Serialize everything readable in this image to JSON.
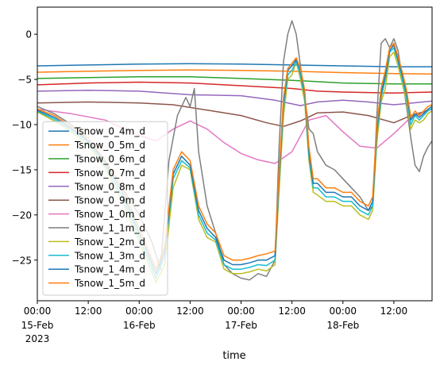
{
  "chart_data": {
    "type": "line",
    "xlabel": "time",
    "ylabel": "",
    "x_unit": "hours since 2023-02-15 00:00",
    "xlim": [
      0,
      93
    ],
    "ylim": [
      -29.5,
      3.0
    ],
    "grid": false,
    "legend_position": "lower-left",
    "y_ticks": [
      0,
      -5,
      -10,
      -15,
      -20,
      -25
    ],
    "y_tick_labels": [
      "0",
      "−5",
      "−10",
      "−15",
      "−20",
      "−25"
    ],
    "x_ticks": [
      {
        "hour": 0,
        "label": "00:00",
        "date": "15-Feb",
        "year": "2023"
      },
      {
        "hour": 12,
        "label": "12:00",
        "date": "",
        "year": ""
      },
      {
        "hour": 24,
        "label": "00:00",
        "date": "16-Feb",
        "year": ""
      },
      {
        "hour": 36,
        "label": "12:00",
        "date": "",
        "year": ""
      },
      {
        "hour": 48,
        "label": "00:00",
        "date": "17-Feb",
        "year": ""
      },
      {
        "hour": 60,
        "label": "12:00",
        "date": "",
        "year": ""
      },
      {
        "hour": 72,
        "label": "00:00",
        "date": "18-Feb",
        "year": ""
      },
      {
        "hour": 84,
        "label": "12:00",
        "date": "",
        "year": ""
      }
    ],
    "series": [
      {
        "name": "Tsnow_0_4m_d",
        "color": "#1f77b4",
        "x": [
          0,
          12,
          24,
          36,
          48,
          60,
          72,
          84,
          93
        ],
        "y": [
          -3.5,
          -3.4,
          -3.3,
          -3.25,
          -3.3,
          -3.4,
          -3.5,
          -3.6,
          -3.6
        ]
      },
      {
        "name": "Tsnow_0_5m_d",
        "color": "#ff7f0e",
        "x": [
          0,
          12,
          24,
          36,
          48,
          60,
          72,
          84,
          93
        ],
        "y": [
          -4.2,
          -4.1,
          -4.0,
          -3.95,
          -4.0,
          -4.1,
          -4.25,
          -4.35,
          -4.4
        ]
      },
      {
        "name": "Tsnow_0_6m_d",
        "color": "#2ca02c",
        "x": [
          0,
          12,
          24,
          36,
          48,
          60,
          72,
          84,
          93
        ],
        "y": [
          -4.9,
          -4.8,
          -4.7,
          -4.7,
          -4.9,
          -5.1,
          -5.4,
          -5.5,
          -5.5
        ]
      },
      {
        "name": "Tsnow_0_7m_d",
        "color": "#d62728",
        "x": [
          0,
          12,
          24,
          36,
          48,
          60,
          66,
          72,
          84,
          93
        ],
        "y": [
          -5.6,
          -5.4,
          -5.3,
          -5.4,
          -5.7,
          -6.0,
          -6.3,
          -6.4,
          -6.5,
          -6.4
        ]
      },
      {
        "name": "Tsnow_0_8m_d",
        "color": "#9467bd",
        "x": [
          0,
          12,
          24,
          36,
          48,
          56,
          62,
          66,
          72,
          78,
          84,
          93
        ],
        "y": [
          -6.3,
          -6.2,
          -6.3,
          -6.7,
          -6.8,
          -7.3,
          -7.9,
          -7.5,
          -7.3,
          -7.5,
          -7.8,
          -7.4
        ]
      },
      {
        "name": "Tsnow_0_9m_d",
        "color": "#8c564b",
        "x": [
          0,
          12,
          24,
          32,
          40,
          48,
          54,
          58,
          62,
          66,
          72,
          78,
          84,
          88,
          93
        ],
        "y": [
          -7.6,
          -7.5,
          -7.6,
          -7.8,
          -8.4,
          -9.0,
          -9.8,
          -10.2,
          -9.6,
          -8.7,
          -8.6,
          -9.0,
          -9.8,
          -9.0,
          -8.3
        ]
      },
      {
        "name": "Tsnow_1_0m_d",
        "color": "#e377c2",
        "x": [
          0,
          8,
          16,
          24,
          28,
          32,
          36,
          40,
          44,
          48,
          52,
          56,
          60,
          64,
          68,
          72,
          76,
          80,
          84,
          88,
          93
        ],
        "y": [
          -8.3,
          -8.8,
          -9.5,
          -11.2,
          -11.8,
          -10.5,
          -9.6,
          -10.5,
          -12.0,
          -13.2,
          -13.9,
          -14.3,
          -13.0,
          -9.5,
          -9.0,
          -10.8,
          -12.4,
          -12.6,
          -11.0,
          -9.2,
          -8.3
        ]
      },
      {
        "name": "Tsnow_1_1m_d",
        "color": "#7f7f7f",
        "x": [
          0,
          4,
          8,
          12,
          16,
          20,
          24,
          27,
          29,
          31,
          33,
          35,
          36,
          37,
          38,
          40,
          42,
          44,
          46,
          48,
          50,
          52,
          54,
          56,
          57,
          58,
          59,
          60,
          61,
          62,
          63,
          64,
          65,
          66,
          68,
          70,
          72,
          74,
          76,
          78,
          79,
          80,
          81,
          82,
          83,
          84,
          85,
          86,
          87,
          88,
          89,
          90,
          91,
          92,
          93
        ],
        "y": [
          -8.0,
          -8.8,
          -10.0,
          -11.8,
          -14.0,
          -17.0,
          -20.0,
          -23.0,
          -26.0,
          -14.0,
          -9.0,
          -7.0,
          -8.0,
          -6.0,
          -13.0,
          -19.0,
          -22.0,
          -25.5,
          -26.5,
          -27.0,
          -27.2,
          -26.5,
          -26.8,
          -25.0,
          -12.0,
          -3.0,
          0.0,
          1.5,
          0.0,
          -3.5,
          -7.0,
          -10.5,
          -11.0,
          -13.0,
          -14.5,
          -15.0,
          -16.0,
          -17.0,
          -18.0,
          -19.5,
          -19.0,
          -9.0,
          -1.0,
          -0.5,
          -1.5,
          -0.5,
          -1.8,
          -5.0,
          -8.0,
          -11.5,
          -14.5,
          -15.2,
          -13.5,
          -12.5,
          -11.8
        ]
      },
      {
        "name": "Tsnow_1_2m_d",
        "color": "#bcbd22",
        "x": [
          0,
          4,
          8,
          12,
          16,
          20,
          24,
          28,
          30,
          32,
          34,
          36,
          38,
          40,
          42,
          44,
          46,
          48,
          50,
          52,
          54,
          56,
          57,
          58,
          59,
          60,
          61,
          62,
          63,
          64,
          65,
          66,
          68,
          70,
          72,
          74,
          76,
          78,
          79,
          80,
          81,
          82,
          83,
          84,
          85,
          86,
          87,
          88,
          89,
          90,
          91,
          92,
          93
        ],
        "y": [
          -8.6,
          -9.6,
          -10.8,
          -12.3,
          -14.8,
          -18.5,
          -23.0,
          -27.5,
          -25.5,
          -17.0,
          -14.5,
          -15.0,
          -20.5,
          -22.5,
          -23.0,
          -26.0,
          -26.5,
          -26.5,
          -26.3,
          -26.0,
          -26.2,
          -25.5,
          -17.0,
          -9.0,
          -5.0,
          -4.5,
          -3.0,
          -5.0,
          -7.5,
          -14.0,
          -17.5,
          -17.8,
          -18.5,
          -18.5,
          -19.0,
          -19.0,
          -20.0,
          -20.5,
          -19.5,
          -12.0,
          -7.5,
          -6.0,
          -2.5,
          -2.0,
          -3.5,
          -5.5,
          -7.5,
          -10.5,
          -9.5,
          -9.8,
          -9.5,
          -8.8,
          -8.5
        ]
      },
      {
        "name": "Tsnow_1_3m_d",
        "color": "#17becf",
        "x": [
          0,
          4,
          8,
          12,
          16,
          20,
          24,
          28,
          30,
          32,
          34,
          36,
          38,
          40,
          42,
          44,
          46,
          48,
          50,
          52,
          54,
          56,
          57,
          58,
          59,
          60,
          61,
          62,
          63,
          64,
          65,
          66,
          68,
          70,
          72,
          74,
          76,
          78,
          79,
          80,
          81,
          82,
          83,
          84,
          85,
          86,
          87,
          88,
          89,
          90,
          91,
          92,
          93
        ],
        "y": [
          -8.5,
          -9.4,
          -10.6,
          -12.0,
          -14.5,
          -18.0,
          -22.5,
          -27.0,
          -24.5,
          -16.0,
          -14.0,
          -14.8,
          -20.0,
          -22.0,
          -22.8,
          -25.5,
          -26.0,
          -26.0,
          -25.8,
          -25.5,
          -25.6,
          -25.0,
          -16.0,
          -8.0,
          -4.5,
          -4.0,
          -3.0,
          -4.5,
          -7.0,
          -13.5,
          -17.0,
          -17.0,
          -18.0,
          -18.0,
          -18.5,
          -18.5,
          -19.5,
          -20.0,
          -19.0,
          -11.0,
          -7.0,
          -5.0,
          -2.0,
          -1.5,
          -3.0,
          -5.0,
          -7.0,
          -10.0,
          -9.0,
          -9.5,
          -9.0,
          -8.5,
          -8.2
        ]
      },
      {
        "name": "Tsnow_1_4m_d",
        "color": "#1f77b4",
        "x": [
          0,
          4,
          8,
          12,
          16,
          20,
          24,
          28,
          30,
          32,
          34,
          36,
          38,
          40,
          42,
          44,
          46,
          48,
          50,
          52,
          54,
          56,
          57,
          58,
          59,
          60,
          61,
          62,
          63,
          64,
          65,
          66,
          68,
          70,
          72,
          74,
          76,
          78,
          79,
          80,
          81,
          82,
          83,
          84,
          85,
          86,
          87,
          88,
          89,
          90,
          91,
          92,
          93
        ],
        "y": [
          -8.4,
          -9.2,
          -10.4,
          -11.8,
          -14.2,
          -17.5,
          -22.0,
          -26.5,
          -24.0,
          -15.5,
          -13.5,
          -14.5,
          -19.5,
          -21.5,
          -22.5,
          -25.0,
          -25.5,
          -25.5,
          -25.3,
          -25.0,
          -25.0,
          -24.5,
          -15.5,
          -7.5,
          -4.0,
          -3.5,
          -2.8,
          -4.0,
          -6.5,
          -13.0,
          -16.5,
          -16.5,
          -17.5,
          -17.5,
          -18.0,
          -18.0,
          -19.0,
          -19.5,
          -18.5,
          -10.5,
          -6.5,
          -4.5,
          -1.8,
          -1.2,
          -2.8,
          -4.5,
          -6.5,
          -9.5,
          -8.8,
          -9.2,
          -8.8,
          -8.3,
          -8.0
        ]
      },
      {
        "name": "Tsnow_1_5m_d",
        "color": "#ff7f0e",
        "x": [
          0,
          4,
          8,
          12,
          16,
          20,
          24,
          28,
          30,
          32,
          34,
          36,
          38,
          40,
          42,
          44,
          46,
          48,
          50,
          52,
          54,
          56,
          57,
          58,
          59,
          60,
          61,
          62,
          63,
          64,
          65,
          66,
          68,
          70,
          72,
          74,
          76,
          78,
          79,
          80,
          81,
          82,
          83,
          84,
          85,
          86,
          87,
          88,
          89,
          90,
          91,
          92,
          93
        ],
        "y": [
          -8.3,
          -9.0,
          -10.2,
          -11.5,
          -14.0,
          -17.0,
          -21.5,
          -26.0,
          -23.5,
          -15.0,
          -13.0,
          -14.0,
          -19.0,
          -21.0,
          -22.0,
          -24.5,
          -25.0,
          -25.0,
          -24.8,
          -24.5,
          -24.3,
          -24.0,
          -15.0,
          -7.0,
          -3.8,
          -3.2,
          -2.6,
          -3.8,
          -6.2,
          -12.5,
          -16.0,
          -16.0,
          -17.0,
          -17.0,
          -17.5,
          -17.5,
          -18.5,
          -19.0,
          -18.0,
          -10.0,
          -6.0,
          -4.0,
          -1.5,
          -1.0,
          -2.5,
          -4.2,
          -6.2,
          -9.2,
          -8.5,
          -9.0,
          -8.5,
          -8.0,
          -7.8
        ]
      }
    ]
  }
}
